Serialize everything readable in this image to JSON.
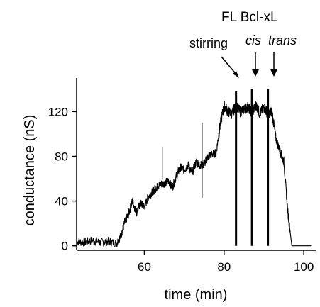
{
  "chart_data": {
    "type": "line",
    "title": "",
    "xlabel": "time (min)",
    "ylabel": "conductance (nS)",
    "xlim": [
      43,
      103
    ],
    "ylim": [
      -4,
      150
    ],
    "x_ticks": [
      60,
      80,
      100
    ],
    "y_ticks": [
      0,
      40,
      80,
      120
    ],
    "grid": false,
    "legend": "none",
    "line_color": "#000000",
    "series": [
      {
        "x": [
          43,
          45,
          47,
          49,
          51,
          53,
          54,
          55,
          56,
          57,
          58,
          59,
          60,
          61,
          62,
          63,
          64,
          65,
          66,
          67,
          68,
          69,
          70,
          71,
          72,
          73,
          74,
          75,
          76,
          77,
          78,
          79,
          80,
          81,
          82,
          83,
          84,
          85,
          86,
          87,
          88,
          89,
          90,
          91,
          92,
          93,
          94,
          95,
          96,
          97,
          98,
          100,
          102
        ],
        "y": [
          4,
          3,
          5,
          3,
          4,
          2,
          8,
          20,
          28,
          40,
          30,
          38,
          35,
          44,
          48,
          52,
          55,
          56,
          58,
          52,
          62,
          70,
          68,
          72,
          65,
          75,
          72,
          73,
          80,
          82,
          83,
          108,
          125,
          120,
          118,
          126,
          120,
          122,
          124,
          118,
          126,
          118,
          124,
          118,
          120,
          96,
          85,
          75,
          30,
          0,
          0,
          0,
          0
        ]
      }
    ],
    "spikes": [
      {
        "x": 64.5,
        "y_top": 88,
        "y_bottom": 60
      },
      {
        "x": 74.5,
        "y_top": 110,
        "y_bottom": 43
      },
      {
        "x": 83,
        "y_top": 138,
        "y_bottom": 0
      },
      {
        "x": 87,
        "y_top": 140,
        "y_bottom": 0
      },
      {
        "x": 91,
        "y_top": 140,
        "y_bottom": 0
      }
    ],
    "annotations": {
      "title_label": "FL Bcl-xL",
      "stirring_label": "stirring",
      "cis_label": "cis",
      "trans_label": "trans"
    }
  }
}
